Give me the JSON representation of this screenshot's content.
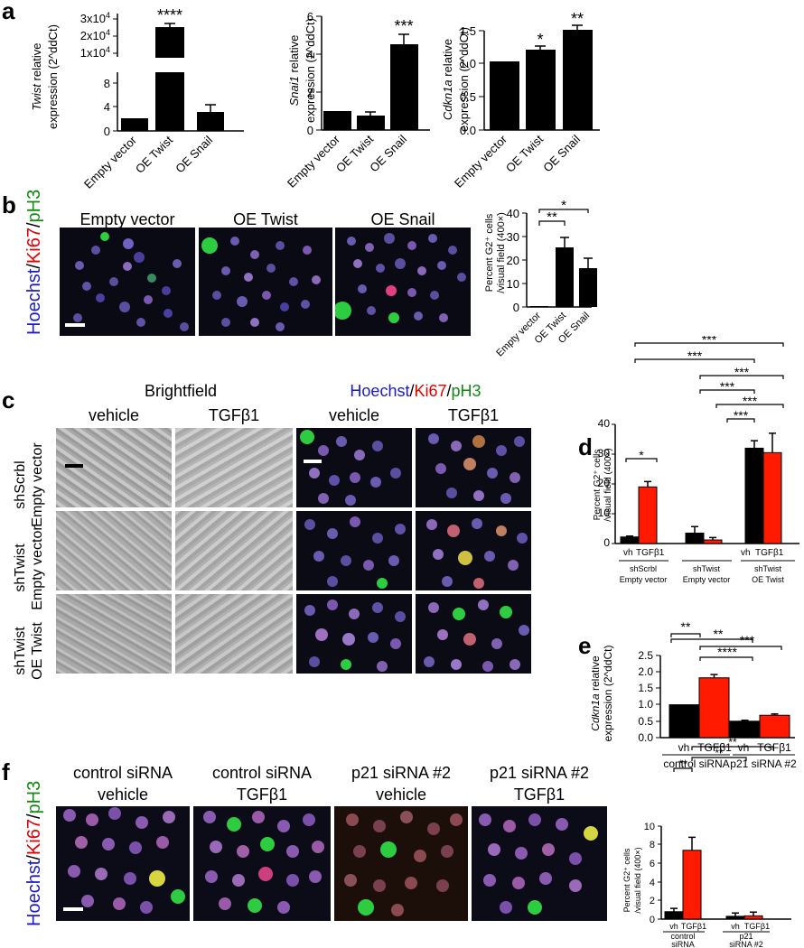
{
  "panel_labels": {
    "a": "a",
    "b": "b",
    "c": "c",
    "d": "d",
    "e": "e",
    "f": "f"
  },
  "stain": {
    "hoechst": "Hoechst",
    "slash": "/",
    "ki67": "Ki67",
    "ph3": "pH3"
  },
  "colors": {
    "black": "#000000",
    "red": "#ff1a00",
    "hoechst_blue": "#1a1acc",
    "ki67_red": "#e00000",
    "ph3_green": "#118a11"
  },
  "panel_b": {
    "headers": [
      "Empty vector",
      "OE Twist",
      "OE Snail"
    ]
  },
  "panel_c": {
    "group_brightfield": "Brightfield",
    "cols": [
      "vehicle",
      "TGFβ1",
      "vehicle",
      "TGFβ1"
    ],
    "rows": [
      [
        "shScrbl",
        "Empty vector"
      ],
      [
        "shTwist",
        "Empty vector"
      ],
      [
        "shTwist",
        "OE Twist"
      ]
    ]
  },
  "panel_f": {
    "headers": [
      [
        "control siRNA",
        "vehicle"
      ],
      [
        "control siRNA",
        "TGFβ1"
      ],
      [
        "p21 siRNA #2",
        "vehicle"
      ],
      [
        "p21 siRNA #2",
        "TGFβ1"
      ]
    ]
  },
  "chart_data": [
    {
      "id": "a1",
      "type": "bar",
      "categories": [
        "Empty vector",
        "OE Twist",
        "OE Snail"
      ],
      "values": [
        1,
        30000,
        3
      ],
      "errors": [
        0,
        2000,
        1
      ],
      "ylabel_italic": "Twist",
      "ylabel_rest": " relative",
      "ylabel2": "expression (2^ddCt)",
      "broken_axis": true,
      "yticks_lower": [
        "0",
        "4",
        "8"
      ],
      "yticks_upper": [
        "1x10",
        "2x10",
        "3x10"
      ],
      "ytick_exp": "4",
      "significance": [
        {
          "bar": 1,
          "text": "****"
        }
      ]
    },
    {
      "id": "a2",
      "type": "bar",
      "categories": [
        "Empty vector",
        "OE Twist",
        "OE Snail"
      ],
      "values": [
        1,
        0.75,
        4.6
      ],
      "errors": [
        0,
        0.12,
        0.5
      ],
      "ylabel_italic": "Snai1",
      "ylabel_rest": " relative",
      "ylabel2": "expression (2^ddCt)",
      "ylim": [
        0,
        6
      ],
      "yticks": [
        0,
        2,
        4,
        6
      ],
      "significance": [
        {
          "bar": 2,
          "text": "***"
        }
      ]
    },
    {
      "id": "a3",
      "type": "bar",
      "categories": [
        "Empty vector",
        "OE Twist",
        "OE Snail"
      ],
      "values": [
        1,
        1.18,
        1.48
      ],
      "errors": [
        0,
        0.05,
        0.06
      ],
      "ylabel_italic": "Cdkn1a",
      "ylabel_rest": " relative",
      "ylabel2": "expression (2^ddCt)",
      "ylim": [
        0,
        1.5
      ],
      "yticks": [
        "0.0",
        "0.5",
        "1.0",
        "1.5"
      ],
      "significance": [
        {
          "bar": 1,
          "text": "*"
        },
        {
          "bar": 2,
          "text": "**"
        }
      ]
    },
    {
      "id": "b",
      "type": "bar",
      "categories": [
        "Empty vector",
        "OE Twist",
        "OE Snail"
      ],
      "values": [
        0.3,
        25.5,
        16.5
      ],
      "errors": [
        0,
        4,
        4
      ],
      "ylabel": "Percent G2⁺ cells",
      "ylabel2": "/visual field (400×)",
      "ylim": [
        0,
        40
      ],
      "yticks": [
        0,
        10,
        20,
        30,
        40
      ],
      "brackets": [
        {
          "text": "**"
        },
        {
          "text": "*"
        }
      ]
    },
    {
      "id": "d",
      "type": "bar",
      "groups": [
        {
          "label": [
            "shScrbl",
            "Empty vector"
          ],
          "vh": 2.2,
          "vh_err": 0.3,
          "tgf": 19,
          "tgf_err": 1.8
        },
        {
          "label": [
            "shTwist",
            "Empty vector"
          ],
          "vh": 3.5,
          "vh_err": 2.2,
          "tgf": 1.2,
          "tgf_err": 0.8
        },
        {
          "label": [
            "shTwist",
            "OE Twist"
          ],
          "vh": 32,
          "vh_err": 2.5,
          "tgf": 30.5,
          "tgf_err": 6.5
        }
      ],
      "series_labels": [
        "vh",
        "TGFβ1"
      ],
      "ylabel": "Percent G2⁺ cells",
      "ylabel2": "/visual field (400×)",
      "ylim": [
        0,
        40
      ],
      "yticks": [
        0,
        10,
        20,
        30,
        40
      ],
      "brackets": [
        "*",
        "***",
        "***",
        "***",
        "***",
        "***",
        "***"
      ]
    },
    {
      "id": "e",
      "type": "bar",
      "groups": [
        {
          "label": "control siRNA",
          "vh": 1.0,
          "vh_err": 0,
          "tgf": 1.82,
          "tgf_err": 0.1
        },
        {
          "label": "p21 siRNA #2",
          "vh": 0.5,
          "vh_err": 0.03,
          "tgf": 0.68,
          "tgf_err": 0.04
        }
      ],
      "series_labels": [
        "vh",
        "TGFβ1"
      ],
      "ylabel_italic": "Cdkn1a",
      "ylabel_rest": " relative",
      "ylabel2": "expression (2^ddCt)",
      "ylim": [
        0,
        2.5
      ],
      "yticks": [
        "0.0",
        "0.5",
        "1.0",
        "1.5",
        "2.0",
        "2.5"
      ],
      "brackets": [
        "**",
        "**",
        "***",
        "****"
      ]
    },
    {
      "id": "f",
      "type": "bar",
      "groups": [
        {
          "label": [
            "control",
            "siRNA"
          ],
          "vh": 0.8,
          "vh_err": 0.35,
          "tgf": 7.4,
          "tgf_err": 1.4
        },
        {
          "label": [
            "p21",
            "siRNA #2"
          ],
          "vh": 0.3,
          "vh_err": 0.35,
          "tgf": 0.35,
          "tgf_err": 0.4
        }
      ],
      "series_labels": [
        "vh",
        "TGFβ1"
      ],
      "ylabel": "Percent G2⁺ cells",
      "ylabel2": "/visual field (400×)",
      "ylim": [
        0,
        10
      ],
      "yticks": [
        0,
        2,
        4,
        6,
        8,
        10
      ],
      "brackets": [
        "**",
        "**",
        "**"
      ]
    }
  ]
}
